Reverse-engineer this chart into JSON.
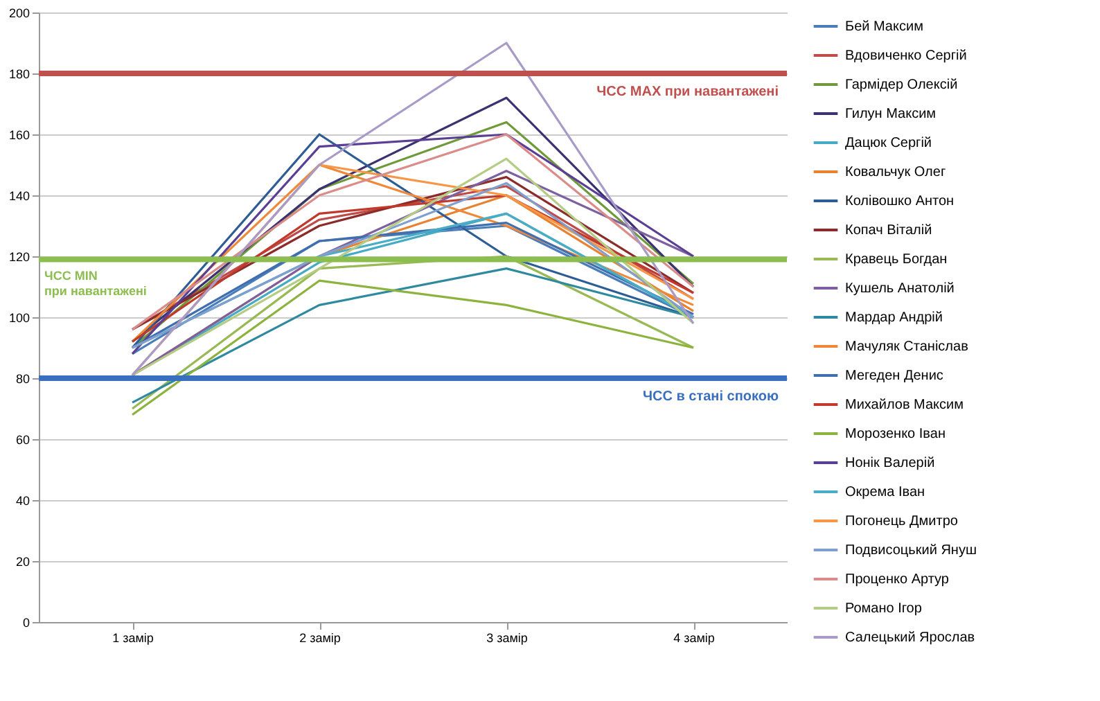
{
  "chart_data": {
    "type": "line",
    "categories": [
      "1 замір",
      "2 замір",
      "3 замір",
      "4 замір"
    ],
    "series": [
      {
        "name": "Бей Максим",
        "color": "#4a7ebb",
        "values": [
          88,
          125,
          130,
          100
        ]
      },
      {
        "name": "Вдовиченко Сергій",
        "color": "#be4b48",
        "values": [
          96,
          132,
          143,
          106
        ]
      },
      {
        "name": "Гармідер Олексій",
        "color": "#6e9a3a",
        "values": [
          90,
          142,
          164,
          111
        ]
      },
      {
        "name": "Гилун Максим",
        "color": "#3d3270",
        "values": [
          92,
          142,
          172,
          110
        ]
      },
      {
        "name": "Дацюк Сергій",
        "color": "#46aac5",
        "values": [
          81,
          118,
          134,
          100
        ]
      },
      {
        "name": "Ковальчук Олег",
        "color": "#e8822e",
        "values": [
          81,
          120,
          140,
          102
        ]
      },
      {
        "name": "Колівошко Антон",
        "color": "#2c5d95",
        "values": [
          90,
          160,
          120,
          100
        ]
      },
      {
        "name": "Копач Віталій",
        "color": "#8b2c2a",
        "values": [
          96,
          130,
          146,
          108
        ]
      },
      {
        "name": "Кравець Богдан",
        "color": "#98b954",
        "values": [
          70,
          116,
          120,
          90
        ]
      },
      {
        "name": "Кушель Анатолій",
        "color": "#7d60a0",
        "values": [
          81,
          120,
          148,
          120
        ]
      },
      {
        "name": "Мардар Андрій",
        "color": "#2f8aa0",
        "values": [
          72,
          104,
          116,
          100
        ]
      },
      {
        "name": "Мачуляк Станіслав",
        "color": "#f0883a",
        "values": [
          92,
          150,
          130,
          104
        ]
      },
      {
        "name": "Мегеден Денис",
        "color": "#3f6fae",
        "values": [
          90,
          125,
          131,
          101
        ]
      },
      {
        "name": "Михайлов Максим",
        "color": "#c0392b",
        "values": [
          92,
          134,
          140,
          108
        ]
      },
      {
        "name": "Морозенко Іван",
        "color": "#8db33f",
        "values": [
          68,
          112,
          104,
          90
        ]
      },
      {
        "name": "Нонік Валерій",
        "color": "#5b3f95",
        "values": [
          88,
          156,
          160,
          120
        ]
      },
      {
        "name": "Окрема Іван",
        "color": "#4bacc6",
        "values": [
          90,
          120,
          134,
          100
        ]
      },
      {
        "name": "Погонець Дмитро",
        "color": "#f79646",
        "values": [
          81,
          150,
          140,
          106
        ]
      },
      {
        "name": "Подвисоцький Януш",
        "color": "#7f9fce",
        "values": [
          90,
          120,
          144,
          100
        ]
      },
      {
        "name": "Проценко Артур",
        "color": "#d98c8a",
        "values": [
          96,
          140,
          160,
          110
        ]
      },
      {
        "name": "Романо Ігор",
        "color": "#b5cc84",
        "values": [
          81,
          116,
          152,
          98
        ]
      },
      {
        "name": "Салецький Ярослав",
        "color": "#a99bc7",
        "values": [
          81,
          150,
          190,
          98
        ]
      }
    ],
    "ylim": [
      0,
      200
    ],
    "yticks": [
      0,
      20,
      40,
      60,
      80,
      100,
      120,
      140,
      160,
      180,
      200
    ],
    "grid": "y",
    "legend": "right",
    "ref_lines": [
      {
        "axis": "y",
        "value": 180,
        "label": "ЧСС MAX при навантажені",
        "color": "#c0504d"
      },
      {
        "axis": "y",
        "value": 119,
        "label": "ЧСС MIN при навантажені",
        "color": "#8bbd4f"
      },
      {
        "axis": "y",
        "value": 80,
        "label": "ЧСС в стані спокою",
        "color": "#3a6fbf"
      }
    ]
  }
}
